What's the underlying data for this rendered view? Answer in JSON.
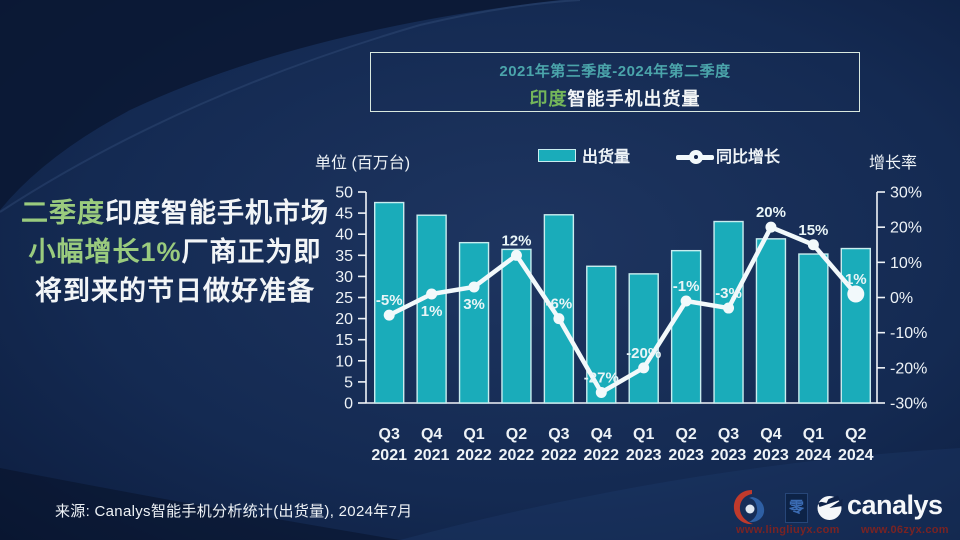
{
  "colors": {
    "background": "#13284e",
    "background_dark": "#0a1733",
    "bar_fill": "#1aacba",
    "bar_border": "#c9edef",
    "line": "#f2f9fb",
    "axis_text": "#eef3f7",
    "data_label": "#e9f5f7",
    "title_teal": "#4ba5ab",
    "headline_green": "#9acb7e",
    "india_green": "#74b65a",
    "white_text": "#f2f5f7",
    "watermark_red": "#7b221c"
  },
  "headline": {
    "segments": [
      {
        "text": "二季度",
        "tone": "green"
      },
      {
        "text": "印度智能手机市场",
        "tone": "white"
      },
      {
        "text": "小幅增长1%",
        "tone": "green"
      },
      {
        "text": "厂商正为即将到来的节日做好准备",
        "tone": "white"
      }
    ]
  },
  "title_box": {
    "line1": "2021年第三季度-2024年第二季度",
    "line2_highlight": "印度",
    "line2_rest": "智能手机出货量"
  },
  "legend": {
    "bar_label": "出货量",
    "line_label": "同比增长"
  },
  "axes": {
    "left_title": "单位 (百万台)",
    "right_title": "增长率"
  },
  "source_note": "来源: Canalys智能手机分析统计(出货量), 2024年7月",
  "branding": {
    "logo_text": "canalys",
    "seal_char": "零",
    "watermark_url1": "www.lingliuyx.com",
    "watermark_url2": "www.06zyx.com"
  },
  "chart_data": {
    "type": "combo-bar-line",
    "title": "2021年第三季度-2024年第二季度 印度智能手机出货量",
    "categories": [
      "Q3 2021",
      "Q4 2021",
      "Q1 2022",
      "Q2 2022",
      "Q3 2022",
      "Q4 2022",
      "Q1 2023",
      "Q2 2023",
      "Q3 2023",
      "Q4 2023",
      "Q1 2024",
      "Q2 2024"
    ],
    "series": [
      {
        "name": "出货量",
        "type": "bar",
        "unit": "百万台",
        "values": [
          47.5,
          44.5,
          38.0,
          36.4,
          44.6,
          32.4,
          30.6,
          36.1,
          43.0,
          38.9,
          35.3,
          36.6
        ]
      },
      {
        "name": "同比增长",
        "type": "line",
        "unit": "%",
        "values": [
          -5,
          1,
          3,
          12,
          -6,
          -27,
          -20,
          -1,
          -3,
          20,
          15,
          1
        ],
        "point_labels": [
          "-5%",
          "1%",
          "3%",
          "12%",
          "-6%",
          "-27%",
          "-20%",
          "-1%",
          "-3%",
          "20%",
          "15%",
          "1%"
        ],
        "label_side": [
          "above",
          "below",
          "below",
          "above",
          "above",
          "above",
          "above",
          "above",
          "above",
          "above",
          "above",
          "above"
        ]
      }
    ],
    "left_axis": {
      "title": "单位 (百万台)",
      "min": 0,
      "max": 50,
      "step": 5
    },
    "right_axis": {
      "title": "增长率",
      "min": -30,
      "max": 30,
      "step": 10,
      "suffix": "%"
    },
    "grid": false,
    "legend_position": "top"
  }
}
